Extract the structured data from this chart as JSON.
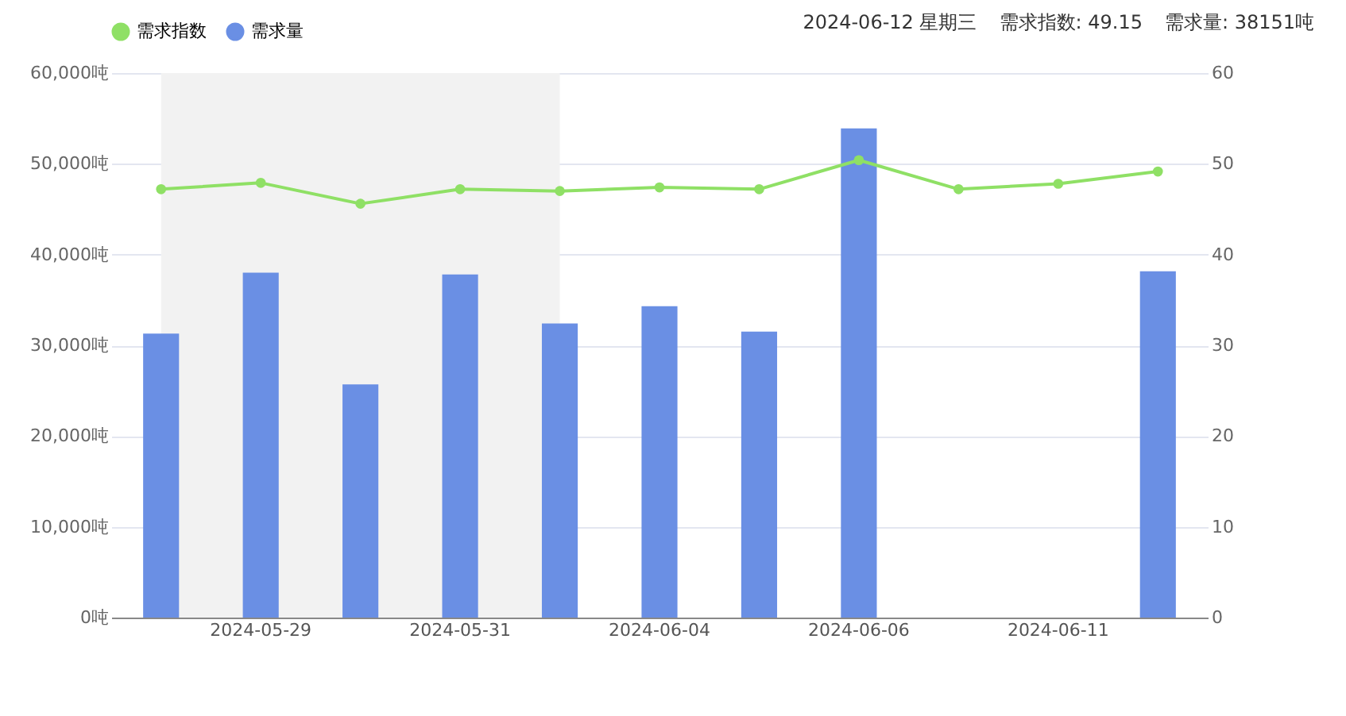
{
  "chart_data": {
    "type": "bar",
    "categories": [
      null,
      "2024-05-29",
      null,
      "2024-05-31",
      null,
      "2024-06-04",
      null,
      "2024-06-06",
      null,
      "2024-06-11",
      null
    ],
    "series": [
      {
        "name": "需求指数",
        "type": "line",
        "axis": "y2",
        "color": "#8fe065",
        "values": [
          47.2,
          47.9,
          45.6,
          47.2,
          47.0,
          47.4,
          47.2,
          50.4,
          47.2,
          47.8,
          49.15
        ]
      },
      {
        "name": "需求量",
        "type": "bar",
        "color": "#6a8fe4",
        "values": [
          31300,
          38000,
          25700,
          37800,
          32400,
          34300,
          31500,
          53900,
          null,
          null,
          38151
        ]
      }
    ],
    "ylim": [
      0,
      60000
    ],
    "yticks": [
      {
        "value": 0,
        "label": "0吨"
      },
      {
        "value": 10000,
        "label": "10,000吨"
      },
      {
        "value": 20000,
        "label": "20,000吨"
      },
      {
        "value": 30000,
        "label": "30,000吨"
      },
      {
        "value": 40000,
        "label": "40,000吨"
      },
      {
        "value": 50000,
        "label": "50,000吨"
      },
      {
        "value": 60000,
        "label": "60,000吨"
      }
    ],
    "y2lim": [
      0,
      60
    ],
    "y2ticks": [
      0,
      10,
      20,
      30,
      40,
      50,
      60
    ],
    "annotations": [
      "2024-06-12 星期三",
      "需求指数: 49.15",
      "需求量: 38151吨"
    ],
    "grid": "y",
    "legend": "top",
    "marker": "circle"
  }
}
